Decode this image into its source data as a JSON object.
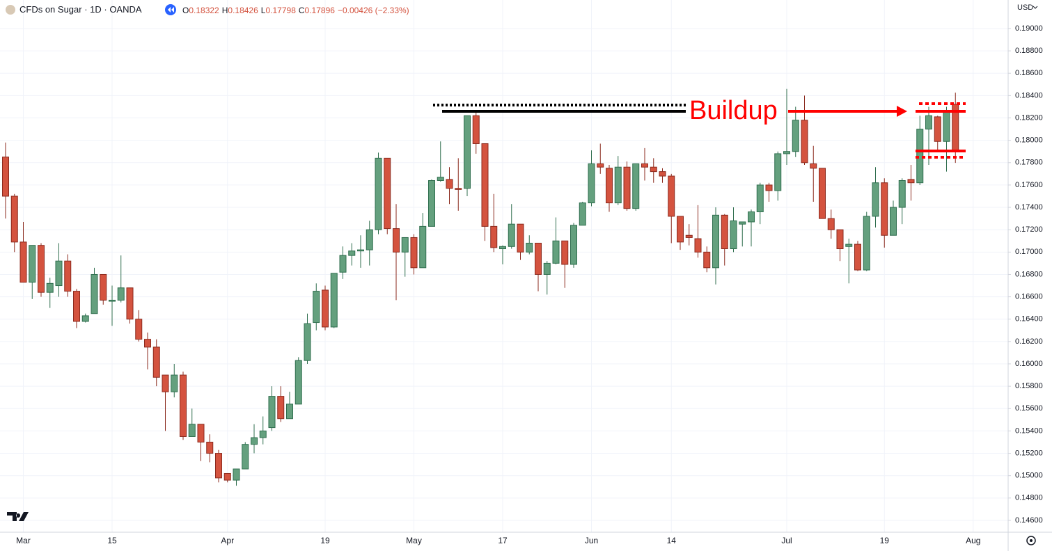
{
  "chart_data": {
    "type": "candlestick",
    "title": "CFDs on Sugar · 1D · OANDA",
    "legend_ohlc": [
      {
        "key": "O",
        "value": "0.18322"
      },
      {
        "key": "H",
        "value": "0.18426"
      },
      {
        "key": "L",
        "value": "0.17798"
      },
      {
        "key": "C",
        "value": "0.17896"
      }
    ],
    "legend_change": "−0.00426 (−2.33%)",
    "currency": "USD",
    "annotation": "Buildup",
    "up_color": "#64a07e",
    "up_border": "#2f6e4e",
    "down_color": "#d4533f",
    "down_border": "#8b2a1e",
    "grid": true,
    "categories": [
      null,
      null,
      "Mar",
      null,
      null,
      null,
      null,
      null,
      null,
      null,
      null,
      null,
      "15",
      null,
      null,
      null,
      null,
      null,
      null,
      null,
      null,
      null,
      null,
      null,
      null,
      "Apr",
      null,
      null,
      null,
      null,
      null,
      null,
      null,
      null,
      null,
      null,
      "19",
      null,
      null,
      null,
      null,
      null,
      null,
      null,
      null,
      null,
      "May",
      null,
      null,
      null,
      null,
      null,
      null,
      null,
      null,
      null,
      "17",
      null,
      null,
      null,
      null,
      null,
      null,
      null,
      null,
      null,
      "Jun",
      null,
      null,
      null,
      null,
      null,
      null,
      null,
      null,
      "14",
      null,
      null,
      null,
      null,
      null,
      null,
      null,
      null,
      null,
      null,
      null,
      null,
      "Jul",
      null,
      null,
      null,
      null,
      null,
      null,
      null,
      null,
      null,
      null,
      "19",
      null,
      null,
      null,
      null,
      null,
      null,
      null,
      null
    ],
    "x_after_end": "Aug",
    "open": [
      0.1785,
      0.175,
      0.1709,
      0.1673,
      0.1706,
      0.1664,
      0.167,
      0.1692,
      0.1665,
      0.1638,
      0.1645,
      0.168,
      0.1656,
      0.1657,
      0.1668,
      0.164,
      0.1622,
      0.1615,
      0.159,
      0.1575,
      0.159,
      0.1535,
      0.1546,
      0.153,
      0.152,
      0.1502,
      0.1496,
      0.1506,
      0.1528,
      0.1534,
      0.1543,
      0.1571,
      0.1551,
      0.1564,
      0.1603,
      0.1637,
      0.1666,
      0.1633,
      0.1682,
      0.1697,
      0.1701,
      0.1702,
      0.172,
      0.1784,
      0.1721,
      0.17,
      0.1713,
      0.1686,
      0.1723,
      0.1764,
      0.1765,
      0.1757,
      0.1757,
      0.1822,
      0.1797,
      0.1723,
      0.1703,
      0.1705,
      0.1725,
      0.17,
      0.1708,
      0.168,
      0.169,
      0.171,
      0.1689,
      0.1724,
      0.1744,
      0.1779,
      0.1775,
      0.1744,
      0.1776,
      0.1739,
      0.1779,
      0.1776,
      0.1772,
      0.1768,
      0.1732,
      0.1715,
      0.1712,
      0.17,
      0.1686,
      0.1733,
      0.1703,
      0.1725,
      0.1727,
      0.1736,
      0.176,
      0.1755,
      0.1788,
      0.179,
      0.1818,
      0.1779,
      0.1775,
      0.173,
      0.172,
      0.1705,
      0.1707,
      0.1684,
      0.1732,
      0.1762,
      0.1715,
      0.174,
      0.1765,
      0.1762,
      0.181,
      0.1821,
      0.1799,
      0.18322
    ],
    "high": [
      0.1798,
      0.1752,
      0.1727,
      0.1706,
      0.1708,
      0.1677,
      0.1708,
      0.1698,
      0.1667,
      0.1645,
      0.1686,
      0.168,
      0.167,
      0.1697,
      0.1668,
      0.1648,
      0.1628,
      0.1622,
      0.159,
      0.16,
      0.1593,
      0.156,
      0.1546,
      0.1537,
      0.1523,
      0.1502,
      0.1506,
      0.153,
      0.1546,
      0.1553,
      0.158,
      0.158,
      0.1575,
      0.1606,
      0.1645,
      0.1672,
      0.167,
      0.1681,
      0.1705,
      0.1708,
      0.1715,
      0.1728,
      0.1789,
      0.1784,
      0.1743,
      0.1713,
      0.1716,
      0.1735,
      0.1765,
      0.1799,
      0.1776,
      0.1784,
      0.1822,
      0.1827,
      0.1797,
      0.1752,
      0.1706,
      0.1743,
      0.1725,
      0.1715,
      0.1708,
      0.1692,
      0.1731,
      0.171,
      0.1726,
      0.1745,
      0.1791,
      0.1797,
      0.1778,
      0.1786,
      0.1781,
      0.1779,
      0.1793,
      0.1784,
      0.1775,
      0.177,
      0.1732,
      0.1725,
      0.1742,
      0.1705,
      0.174,
      0.1734,
      0.174,
      0.1727,
      0.1738,
      0.1762,
      0.1762,
      0.179,
      0.1846,
      0.183,
      0.184,
      0.1795,
      0.1775,
      0.1738,
      0.172,
      0.1712,
      0.171,
      0.1736,
      0.1776,
      0.1766,
      0.1746,
      0.1766,
      0.1778,
      0.1822,
      0.183,
      0.1822,
      0.183,
      0.18426
    ],
    "low": [
      0.173,
      0.17,
      0.1673,
      0.1658,
      0.166,
      0.165,
      0.166,
      0.166,
      0.1632,
      0.1637,
      0.1645,
      0.1653,
      0.1634,
      0.1655,
      0.1636,
      0.162,
      0.1595,
      0.158,
      0.154,
      0.157,
      0.1532,
      0.1535,
      0.1513,
      0.1512,
      0.1494,
      0.1494,
      0.1491,
      0.1506,
      0.152,
      0.1528,
      0.154,
      0.1548,
      0.1551,
      0.1564,
      0.16,
      0.163,
      0.163,
      0.1632,
      0.1676,
      0.1688,
      0.1686,
      0.1688,
      0.1716,
      0.1716,
      0.1657,
      0.1678,
      0.168,
      0.1686,
      0.1723,
      0.1763,
      0.1743,
      0.1737,
      0.175,
      0.1788,
      0.171,
      0.17,
      0.1689,
      0.1703,
      0.1693,
      0.1698,
      0.1665,
      0.1662,
      0.1689,
      0.1668,
      0.1686,
      0.1724,
      0.1741,
      0.177,
      0.1736,
      0.1742,
      0.1737,
      0.1737,
      0.1764,
      0.1762,
      0.1762,
      0.1708,
      0.1702,
      0.1706,
      0.1695,
      0.1682,
      0.1671,
      0.1688,
      0.17,
      0.1705,
      0.1705,
      0.1725,
      0.1745,
      0.1746,
      0.1778,
      0.1785,
      0.1778,
      0.1745,
      0.173,
      0.1712,
      0.1692,
      0.1672,
      0.1683,
      0.1683,
      0.1722,
      0.1704,
      0.1715,
      0.1725,
      0.1746,
      0.176,
      0.1778,
      0.179,
      0.1772,
      0.17798
    ],
    "close": [
      0.175,
      0.1709,
      0.1673,
      0.1706,
      0.1664,
      0.1672,
      0.1692,
      0.1665,
      0.1638,
      0.1643,
      0.168,
      0.1657,
      0.1657,
      0.1668,
      0.164,
      0.1622,
      0.1615,
      0.1588,
      0.1575,
      0.159,
      0.1535,
      0.1546,
      0.153,
      0.152,
      0.1498,
      0.1496,
      0.1506,
      0.1528,
      0.1534,
      0.154,
      0.1571,
      0.1551,
      0.1564,
      0.1603,
      0.1636,
      0.1665,
      0.1633,
      0.1681,
      0.1697,
      0.1701,
      0.1702,
      0.172,
      0.1784,
      0.1721,
      0.17,
      0.1713,
      0.1686,
      0.1723,
      0.1764,
      0.1767,
      0.1757,
      0.1756,
      0.1822,
      0.1797,
      0.1723,
      0.1704,
      0.1705,
      0.1725,
      0.17,
      0.1708,
      0.168,
      0.169,
      0.171,
      0.1689,
      0.1724,
      0.1744,
      0.1779,
      0.1776,
      0.1744,
      0.1776,
      0.1739,
      0.1779,
      0.1776,
      0.1772,
      0.1768,
      0.1732,
      0.1709,
      0.1713,
      0.17,
      0.1686,
      0.1733,
      0.1703,
      0.1728,
      0.1727,
      0.1736,
      0.176,
      0.1755,
      0.1788,
      0.179,
      0.1818,
      0.178,
      0.1775,
      0.173,
      0.172,
      0.1703,
      0.1707,
      0.1684,
      0.1732,
      0.1762,
      0.1715,
      0.174,
      0.1764,
      0.1762,
      0.181,
      0.1822,
      0.1799,
      0.1826,
      0.17896
    ],
    "ylim": [
      0.14494,
      0.19255
    ],
    "yticks": [
      {
        "value": 0.146,
        "label": "0.14600"
      },
      {
        "value": 0.148,
        "label": "0.14800"
      },
      {
        "value": 0.15,
        "label": "0.15000"
      },
      {
        "value": 0.152,
        "label": "0.15200"
      },
      {
        "value": 0.154,
        "label": "0.15400"
      },
      {
        "value": 0.156,
        "label": "0.15600"
      },
      {
        "value": 0.158,
        "label": "0.15800"
      },
      {
        "value": 0.16,
        "label": "0.16000"
      },
      {
        "value": 0.162,
        "label": "0.16200"
      },
      {
        "value": 0.164,
        "label": "0.16400"
      },
      {
        "value": 0.166,
        "label": "0.16600"
      },
      {
        "value": 0.168,
        "label": "0.16800"
      },
      {
        "value": 0.17,
        "label": "0.17000"
      },
      {
        "value": 0.172,
        "label": "0.17200"
      },
      {
        "value": 0.174,
        "label": "0.17400"
      },
      {
        "value": 0.176,
        "label": "0.17600"
      },
      {
        "value": 0.178,
        "label": "0.17800"
      },
      {
        "value": 0.18,
        "label": "0.18000"
      },
      {
        "value": 0.182,
        "label": "0.18200"
      },
      {
        "value": 0.184,
        "label": "0.18400"
      },
      {
        "value": 0.186,
        "label": "0.18600"
      },
      {
        "value": 0.188,
        "label": "0.18800"
      },
      {
        "value": 0.19,
        "label": "0.19000"
      }
    ]
  }
}
